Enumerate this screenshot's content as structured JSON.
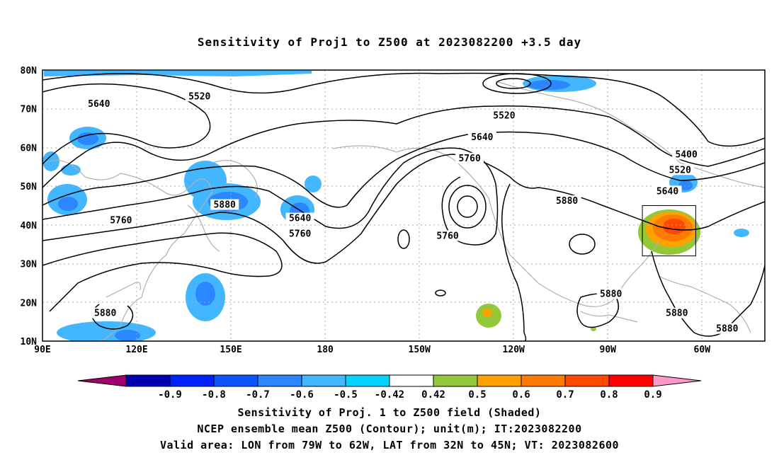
{
  "title": "Sensitivity of Proj1 to Z500 at 2023082200 +3.5 day",
  "lat_labels": [
    "80N",
    "70N",
    "60N",
    "50N",
    "40N",
    "30N",
    "20N",
    "10N"
  ],
  "lon_labels": [
    "90E",
    "120E",
    "150E",
    "180",
    "150W",
    "120W",
    "90W",
    "60W"
  ],
  "contour_labels": [
    {
      "text": "5520",
      "lon": 140,
      "lat": 73
    },
    {
      "text": "5640",
      "lon": 108,
      "lat": 71
    },
    {
      "text": "5520",
      "lon": -123,
      "lat": 68
    },
    {
      "text": "5640",
      "lon": -130,
      "lat": 62.5
    },
    {
      "text": "5760",
      "lon": -134,
      "lat": 57
    },
    {
      "text": "5400",
      "lon": -65,
      "lat": 58
    },
    {
      "text": "5520",
      "lon": -67,
      "lat": 54
    },
    {
      "text": "5640",
      "lon": -71,
      "lat": 48.5
    },
    {
      "text": "5880",
      "lon": 148,
      "lat": 45
    },
    {
      "text": "5760",
      "lon": 115,
      "lat": 41
    },
    {
      "text": "5640",
      "lon": 172,
      "lat": 41.5
    },
    {
      "text": "5760",
      "lon": 172,
      "lat": 37.5
    },
    {
      "text": "5760",
      "lon": -141,
      "lat": 37
    },
    {
      "text": "5880",
      "lon": -103,
      "lat": 46
    },
    {
      "text": "5880",
      "lon": 110,
      "lat": 17
    },
    {
      "text": "5880",
      "lon": -89,
      "lat": 22
    },
    {
      "text": "5880",
      "lon": -68,
      "lat": 17
    },
    {
      "text": "5880",
      "lon": -52,
      "lat": 13
    }
  ],
  "colorbar": {
    "labels": [
      "-0.9",
      "-0.8",
      "-0.7",
      "-0.6",
      "-0.5",
      "-0.42",
      "0.42",
      "0.5",
      "0.6",
      "0.7",
      "0.8",
      "0.9"
    ],
    "colors": [
      "#a0006a",
      "#0000b0",
      "#0022ff",
      "#0a55ff",
      "#2b87ff",
      "#42b6ff",
      "#02d2ff",
      "#ffffff",
      "#92c83a",
      "#ffa200",
      "#ff7a00",
      "#ff4800",
      "#ff0000",
      "#ff98c8"
    ]
  },
  "valid_box": {
    "lon_min": -79,
    "lon_max": -62,
    "lat_min": 32,
    "lat_max": 45
  },
  "captions": [
    "Sensitivity of Proj. 1 to Z500 field (Shaded)",
    "NCEP ensemble mean Z500 (Contour); unit(m); IT:2023082200",
    "Valid area: LON from 79W to 62W, LAT from 32N to 45N; VT: 2023082600"
  ]
}
